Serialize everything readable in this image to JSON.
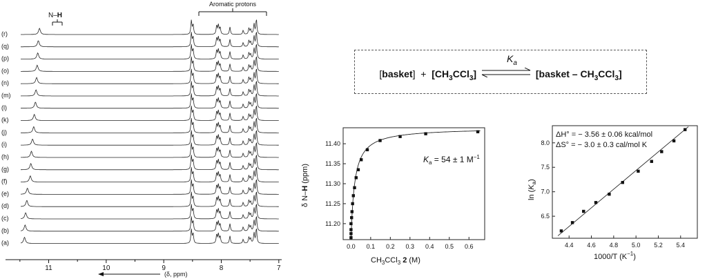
{
  "nmr": {
    "nh_label": "N–",
    "nh_bold": "H",
    "aromatic_label": "Aromatic protons",
    "trace_labels": [
      "(r)",
      "(q)",
      "(p)",
      "(o)",
      "(n)",
      "(m)",
      "(l)",
      "(k)",
      "(j)",
      "(i)",
      "(h)",
      "(g)",
      "(f)",
      "(e)",
      "(d)",
      "(c)",
      "(b)",
      "(a)"
    ],
    "axis_ticks": [
      "11",
      "10",
      "9",
      "8",
      "7"
    ],
    "axis_label": "(δ, ppm)",
    "nh_shifts_ppm": [
      11.16,
      11.18,
      11.19,
      11.2,
      11.21,
      11.22,
      11.23,
      11.25,
      11.26,
      11.28,
      11.3,
      11.31,
      11.32,
      11.37,
      11.38,
      11.4,
      11.41,
      11.42
    ]
  },
  "equilibrium": {
    "left_open": "[",
    "basket": "basket",
    "left_close": "]",
    "plus": "+",
    "guest_prefix": "[CH",
    "guest_sub1": "3",
    "guest_mid": "CCl",
    "guest_sub2": "3",
    "guest_close": "]",
    "ka_symbol": "K",
    "ka_sub": "a",
    "complex_open": "[",
    "complex_text": "basket – CH",
    "complex_sub1": "3",
    "complex_mid": "CCl",
    "complex_sub2": "3",
    "complex_close": "]"
  },
  "chart_data": [
    {
      "type": "scatter",
      "title": "",
      "xlabel_prefix": "CH",
      "xlabel_sub1": "3",
      "xlabel_mid": "CCl",
      "xlabel_sub2": "3",
      "xlabel_bold": " 2",
      "xlabel_unit": " (M)",
      "ylabel_prefix": "δ N–",
      "ylabel_bold": "H",
      "ylabel_unit": " (ppm)",
      "annotation_prefix": "K",
      "annotation_sub": "a",
      "annotation_text": " = 54 ± 1 M",
      "annotation_sup": "−1",
      "xlim": [
        -0.04,
        0.68
      ],
      "ylim": [
        11.16,
        11.44
      ],
      "xticks": [
        "0.0",
        "0.1",
        "0.2",
        "0.3",
        "0.4",
        "0.5",
        "0.6"
      ],
      "xtick_values": [
        0.0,
        0.1,
        0.2,
        0.3,
        0.4,
        0.5,
        0.6
      ],
      "yticks": [
        "11.20",
        "11.25",
        "11.30",
        "11.35",
        "11.40"
      ],
      "ytick_values": [
        11.2,
        11.25,
        11.3,
        11.35,
        11.4
      ],
      "x": [
        0.0,
        0.0,
        0.0,
        0.0,
        0.003,
        0.005,
        0.008,
        0.012,
        0.018,
        0.026,
        0.037,
        0.052,
        0.083,
        0.148,
        0.25,
        0.38,
        0.645
      ],
      "y": [
        11.165,
        11.175,
        11.185,
        11.2,
        11.215,
        11.23,
        11.25,
        11.27,
        11.29,
        11.315,
        11.335,
        11.36,
        11.385,
        11.408,
        11.418,
        11.425,
        11.43
      ],
      "fit_ka": 54
    },
    {
      "type": "scatter",
      "title": "",
      "xlabel": "1000/T (K",
      "xlabel_sup": "−1",
      "xlabel_close": ")",
      "ylabel_prefix": "ln (",
      "ylabel_italic": "K",
      "ylabel_sub": "a",
      "ylabel_close": ")",
      "annotation_h": "ΔH° = − 3.56 ± 0.06 kcal/mol",
      "annotation_s": "ΔS° =   − 3.0 ± 0.3 cal/mol K",
      "xlim": [
        4.25,
        5.55
      ],
      "ylim": [
        6.05,
        8.35
      ],
      "xticks": [
        "4.4",
        "4.6",
        "4.8",
        "5.0",
        "5.2",
        "5.4"
      ],
      "xtick_values": [
        4.4,
        4.6,
        4.8,
        5.0,
        5.2,
        5.4
      ],
      "yticks": [
        "6.5",
        "7.0",
        "7.5",
        "8.0"
      ],
      "ytick_values": [
        6.5,
        7.0,
        7.5,
        8.0
      ],
      "x": [
        4.33,
        4.43,
        4.53,
        4.64,
        4.76,
        4.88,
        5.02,
        5.14,
        5.23,
        5.34,
        5.44
      ],
      "y": [
        6.2,
        6.37,
        6.6,
        6.78,
        6.95,
        7.19,
        7.42,
        7.62,
        7.82,
        8.04,
        8.27
      ],
      "fit": [
        [
          4.3,
          6.1
        ],
        [
          5.47,
          8.33
        ]
      ]
    }
  ]
}
